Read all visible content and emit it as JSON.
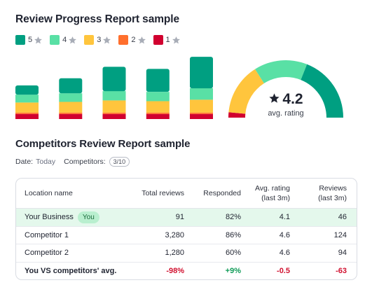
{
  "report": {
    "title": "Review Progress Report sample",
    "legend": [
      {
        "num": "5",
        "color": "#009f81"
      },
      {
        "num": "4",
        "color": "#59e0a5"
      },
      {
        "num": "3",
        "color": "#ffc53d"
      },
      {
        "num": "2",
        "color": "#ff6f2d"
      },
      {
        "num": "1",
        "color": "#d1002f"
      }
    ],
    "star_color": "#a8adb7",
    "gauge": {
      "value": "4.2",
      "label": "avg. rating"
    }
  },
  "chart_data": {
    "type": "bar",
    "stacked": true,
    "categories": [
      "",
      "",
      "",
      "",
      ""
    ],
    "series": [
      {
        "values": [
          7,
          7,
          7,
          7,
          7
        ],
        "color": "#d1002f"
      },
      {
        "values": [
          2,
          2,
          2,
          2,
          2
        ],
        "color": "#ff6f2d"
      },
      {
        "values": [
          14,
          15,
          17,
          16,
          18
        ],
        "color": "#ffc53d"
      },
      {
        "values": [
          11,
          12,
          13,
          13,
          16
        ],
        "color": "#59e0a5"
      },
      {
        "values": [
          13,
          21,
          34,
          32,
          44
        ],
        "color": "#009f81"
      }
    ],
    "ylim": [
      0,
      90
    ],
    "grid": false,
    "legend_position": "top-left"
  },
  "gauge_arcs": [
    {
      "from": 0,
      "to": 0.03,
      "color": "#d1002f"
    },
    {
      "from": 0.03,
      "to": 0.32,
      "color": "#ffc53d"
    },
    {
      "from": 0.32,
      "to": 0.62,
      "color": "#59e0a5"
    },
    {
      "from": 0.62,
      "to": 1.0,
      "color": "#009f81"
    }
  ],
  "competitors": {
    "title": "Competitors Review Report sample",
    "date_label": "Date:",
    "date_value": "Today",
    "competitors_label": "Competitors:",
    "competitors_value": "3/10",
    "columns": {
      "location": "Location name",
      "total": "Total reviews",
      "responded": "Responded",
      "avg_line1": "Avg. rating",
      "avg_line2": "(last 3m)",
      "rev_line1": "Reviews",
      "rev_line2": "(last 3m)"
    },
    "rows": [
      {
        "name": "Your Business",
        "badge": "You",
        "total": "91",
        "responded": "82%",
        "avg": "4.1",
        "reviews": "46"
      },
      {
        "name": "Competitor 1",
        "total": "3,280",
        "responded": "86%",
        "avg": "4.6",
        "reviews": "124"
      },
      {
        "name": "Competitor 2",
        "total": "1,280",
        "responded": "60%",
        "avg": "4.6",
        "reviews": "94"
      }
    ],
    "summary": {
      "name": "You VS competitors' avg.",
      "total": "-98%",
      "responded": "+9%",
      "avg": "-0.5",
      "reviews": "-63"
    },
    "colors": {
      "negative": "#d1102f",
      "positive": "#0f9b57",
      "you_row": "#e4f8ec"
    }
  }
}
